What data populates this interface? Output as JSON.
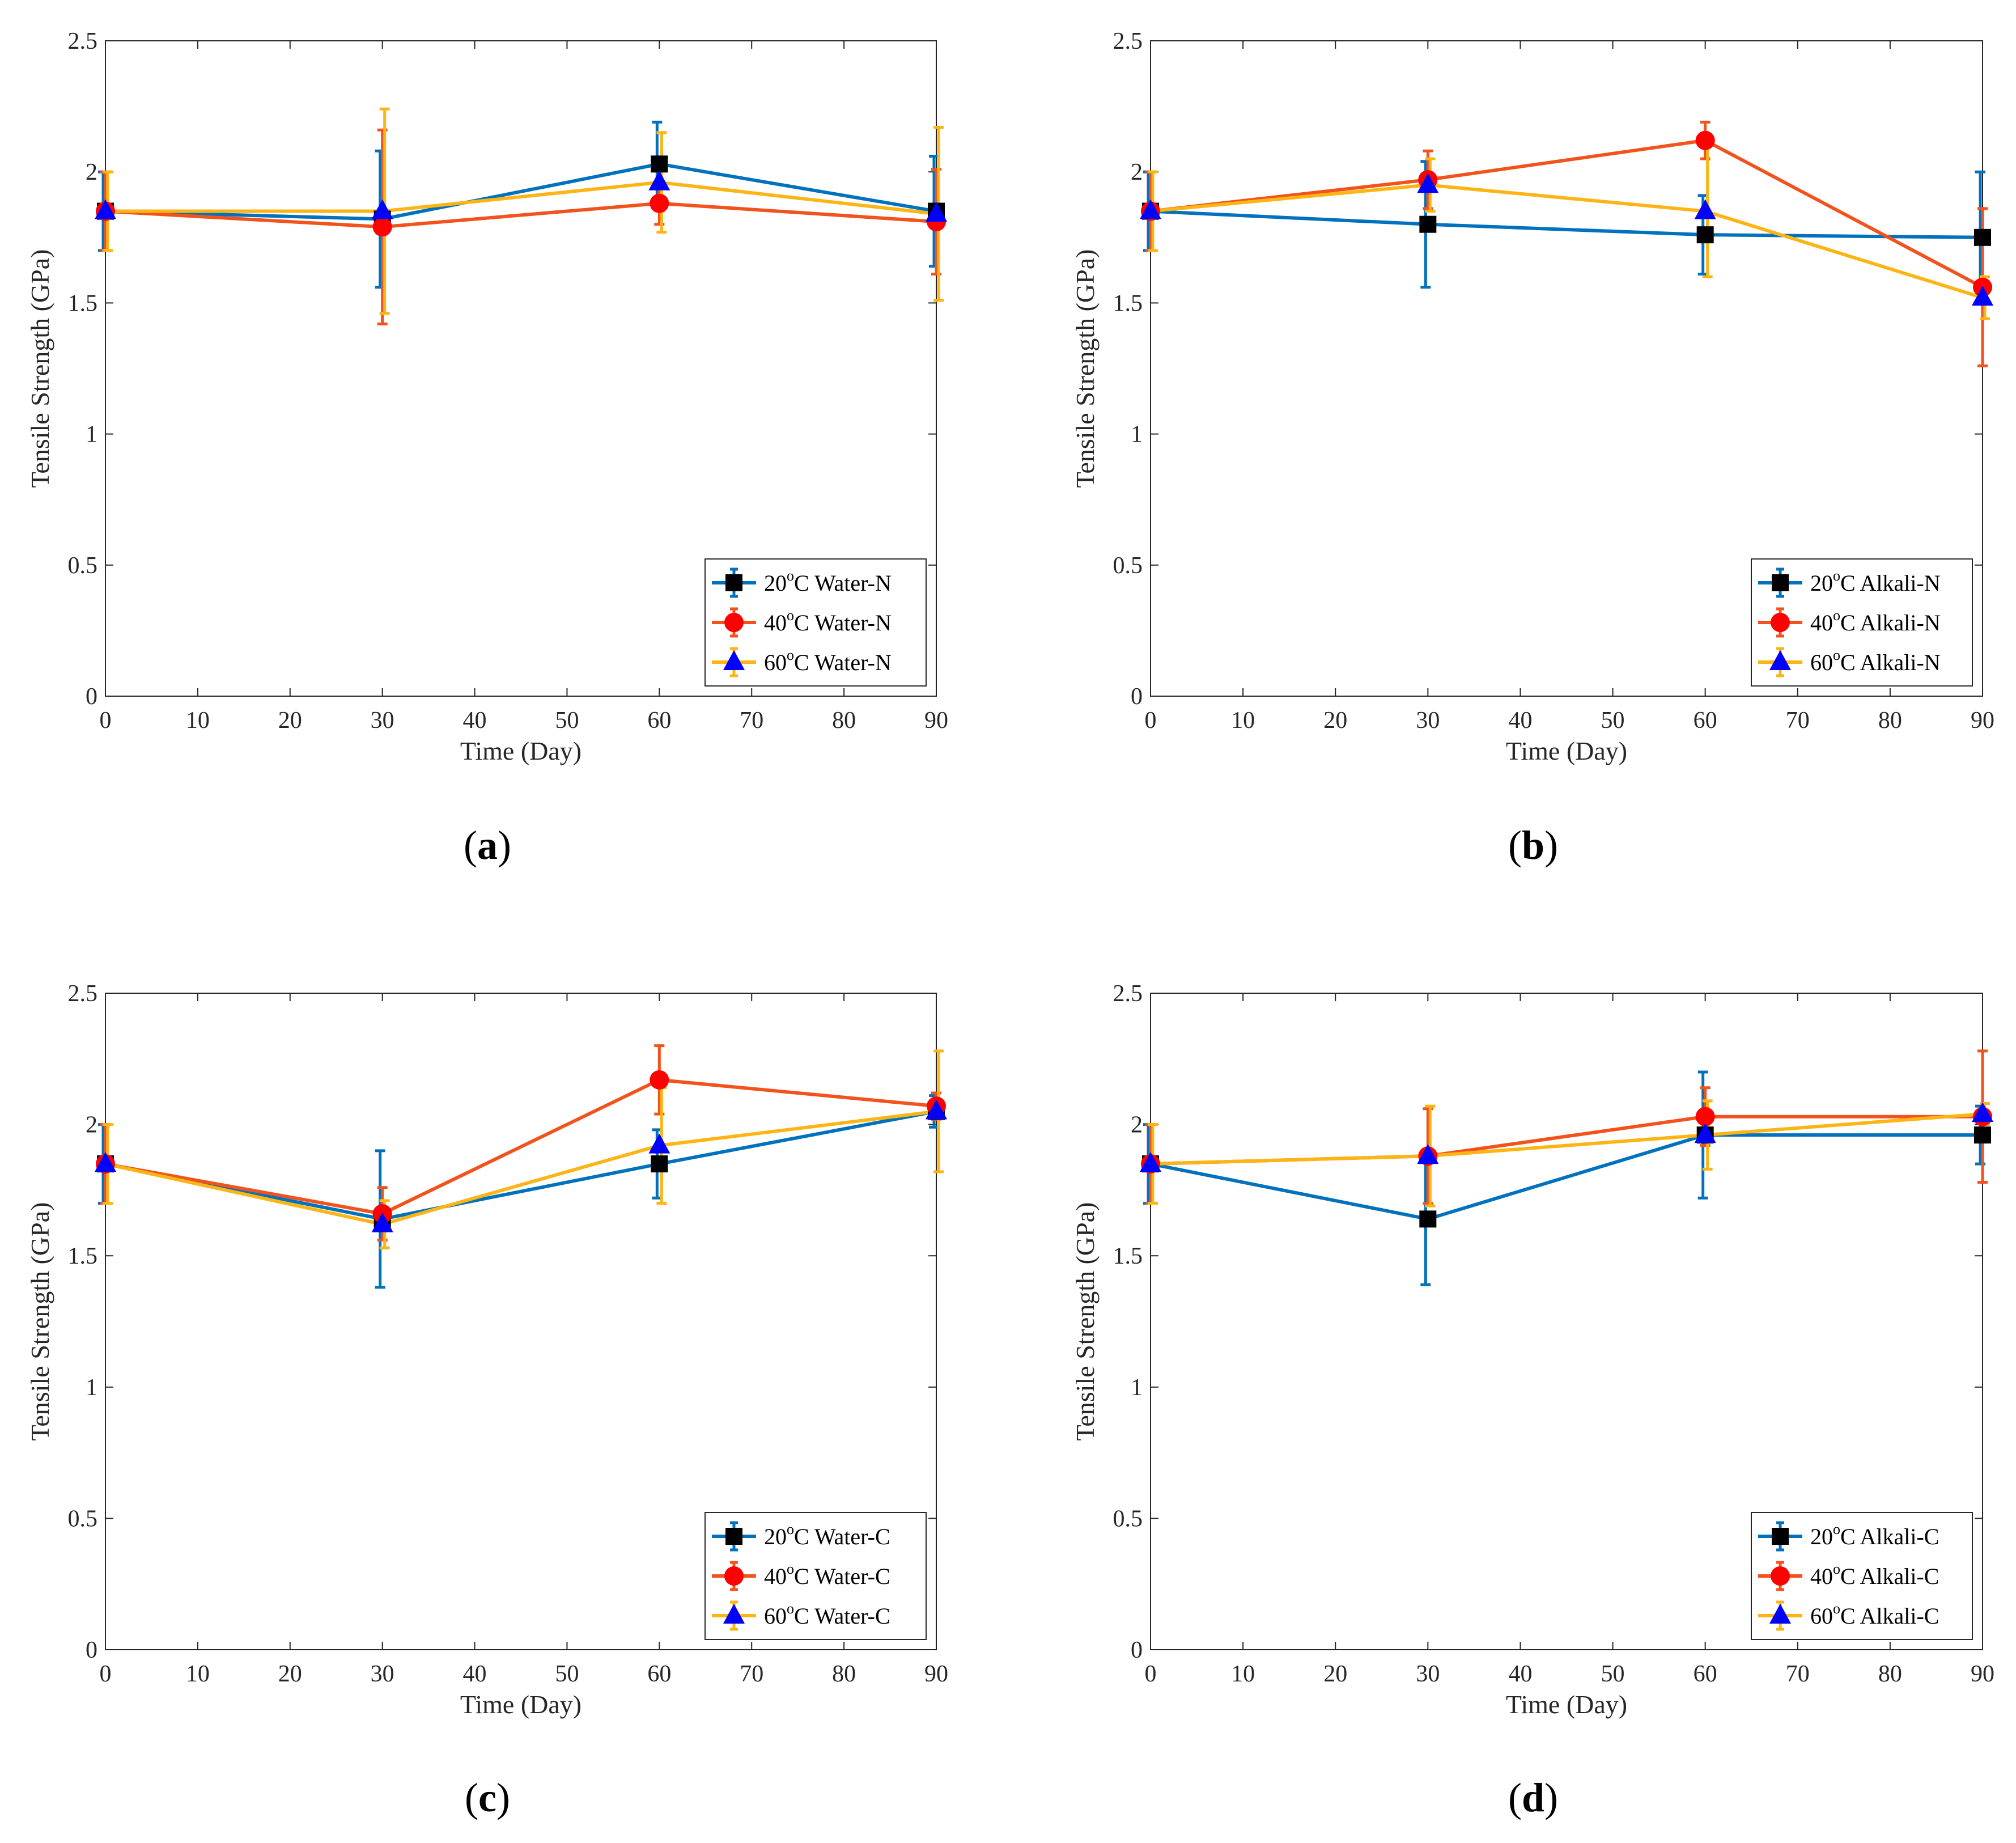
{
  "colors": {
    "blue": "#0072BD",
    "orange": "#F2521B",
    "yellow": "#FDB515",
    "marker_black": "#000000",
    "marker_red": "#FF0000",
    "marker_blue": "#0000FF",
    "axis": "#262626"
  },
  "chart_data": [
    {
      "id": "a",
      "type": "line",
      "panel_label": "a",
      "xlabel": "Time (Day)",
      "ylabel": "Tensile Strength (GPa)",
      "xlim": [
        0,
        90
      ],
      "ylim": [
        0,
        2.5
      ],
      "xticks": [
        "0",
        "10",
        "20",
        "30",
        "40",
        "50",
        "60",
        "70",
        "80",
        "90"
      ],
      "yticks": [
        "0",
        "0.5",
        "1",
        "1.5",
        "2",
        "2.5"
      ],
      "x": [
        0,
        30,
        60,
        90
      ],
      "legend_position": "bottom-right",
      "series": [
        {
          "name": "20°C Water-N",
          "legend_prefix": "20",
          "legend_sup": "o",
          "legend_suffix": "C Water-N",
          "values": [
            1.85,
            1.82,
            2.03,
            1.85
          ],
          "errors": [
            0.15,
            0.26,
            0.16,
            0.21
          ],
          "marker": "square",
          "line_color": "blue"
        },
        {
          "name": "40°C Water-N",
          "legend_prefix": "40",
          "legend_sup": "o",
          "legend_suffix": "C Water-N",
          "values": [
            1.85,
            1.79,
            1.88,
            1.81
          ],
          "errors": [
            0.15,
            0.37,
            0.08,
            0.2
          ],
          "marker": "circle",
          "line_color": "orange"
        },
        {
          "name": "60°C Water-N",
          "legend_prefix": "60",
          "legend_sup": "o",
          "legend_suffix": "C Water-N",
          "values": [
            1.85,
            1.85,
            1.96,
            1.84
          ],
          "errors": [
            0.15,
            0.39,
            0.19,
            0.33
          ],
          "marker": "triangle",
          "line_color": "yellow"
        }
      ]
    },
    {
      "id": "b",
      "type": "line",
      "panel_label": "b",
      "xlabel": "Time (Day)",
      "ylabel": "Tensile Strength (GPa)",
      "xlim": [
        0,
        90
      ],
      "ylim": [
        0,
        2.5
      ],
      "xticks": [
        "0",
        "10",
        "20",
        "30",
        "40",
        "50",
        "60",
        "70",
        "80",
        "90"
      ],
      "yticks": [
        "0",
        "0.5",
        "1",
        "1.5",
        "2",
        "2.5"
      ],
      "x": [
        0,
        30,
        60,
        90
      ],
      "legend_position": "bottom-right",
      "series": [
        {
          "name": "20°C Alkali-N",
          "legend_prefix": "20",
          "legend_sup": "o",
          "legend_suffix": "C Alkali-N",
          "values": [
            1.85,
            1.8,
            1.76,
            1.75
          ],
          "errors": [
            0.15,
            0.24,
            0.15,
            0.25
          ],
          "marker": "square",
          "line_color": "blue"
        },
        {
          "name": "40°C Alkali-N",
          "legend_prefix": "40",
          "legend_sup": "o",
          "legend_suffix": "C Alkali-N",
          "values": [
            1.85,
            1.97,
            2.12,
            1.56
          ],
          "errors": [
            0.15,
            0.11,
            0.07,
            0.3
          ],
          "marker": "circle",
          "line_color": "orange"
        },
        {
          "name": "60°C Alkali-N",
          "legend_prefix": "60",
          "legend_sup": "o",
          "legend_suffix": "C Alkali-N",
          "values": [
            1.85,
            1.95,
            1.85,
            1.52
          ],
          "errors": [
            0.15,
            0.1,
            0.25,
            0.08
          ],
          "marker": "triangle",
          "line_color": "yellow"
        }
      ]
    },
    {
      "id": "c",
      "type": "line",
      "panel_label": "c",
      "xlabel": "Time (Day)",
      "ylabel": "Tensile Strength (GPa)",
      "xlim": [
        0,
        90
      ],
      "ylim": [
        0,
        2.5
      ],
      "xticks": [
        "0",
        "10",
        "20",
        "30",
        "40",
        "50",
        "60",
        "70",
        "80",
        "90"
      ],
      "yticks": [
        "0",
        "0.5",
        "1",
        "1.5",
        "2",
        "2.5"
      ],
      "x": [
        0,
        30,
        60,
        90
      ],
      "legend_position": "bottom-right",
      "series": [
        {
          "name": "20°C Water-C",
          "legend_prefix": "20",
          "legend_sup": "o",
          "legend_suffix": "C Water-C",
          "values": [
            1.85,
            1.64,
            1.85,
            2.05
          ],
          "errors": [
            0.15,
            0.26,
            0.13,
            0.06
          ],
          "marker": "square",
          "line_color": "blue"
        },
        {
          "name": "40°C Water-C",
          "legend_prefix": "40",
          "legend_sup": "o",
          "legend_suffix": "C Water-C",
          "values": [
            1.85,
            1.66,
            2.17,
            2.07
          ],
          "errors": [
            0.15,
            0.1,
            0.13,
            0.05
          ],
          "marker": "circle",
          "line_color": "orange"
        },
        {
          "name": "60°C Water-C",
          "legend_prefix": "60",
          "legend_sup": "o",
          "legend_suffix": "C Water-C",
          "values": [
            1.85,
            1.62,
            1.92,
            2.05
          ],
          "errors": [
            0.15,
            0.09,
            0.22,
            0.23
          ],
          "marker": "triangle",
          "line_color": "yellow"
        }
      ]
    },
    {
      "id": "d",
      "type": "line",
      "panel_label": "d",
      "xlabel": "Time (Day)",
      "ylabel": "Tensile Strength (GPa)",
      "xlim": [
        0,
        90
      ],
      "ylim": [
        0,
        2.5
      ],
      "xticks": [
        "0",
        "10",
        "20",
        "30",
        "40",
        "50",
        "60",
        "70",
        "80",
        "90"
      ],
      "yticks": [
        "0",
        "0.5",
        "1",
        "1.5",
        "2",
        "2.5"
      ],
      "x": [
        0,
        30,
        60,
        90
      ],
      "legend_position": "bottom-right",
      "series": [
        {
          "name": "20°C Alkali-C",
          "legend_prefix": "20",
          "legend_sup": "o",
          "legend_suffix": "C Alkali-C",
          "values": [
            1.85,
            1.64,
            1.96,
            1.96
          ],
          "errors": [
            0.15,
            0.25,
            0.24,
            0.11
          ],
          "marker": "square",
          "line_color": "blue"
        },
        {
          "name": "40°C Alkali-C",
          "legend_prefix": "40",
          "legend_sup": "o",
          "legend_suffix": "C Alkali-C",
          "values": [
            1.85,
            1.88,
            2.03,
            2.03
          ],
          "errors": [
            0.15,
            0.18,
            0.11,
            0.25
          ],
          "marker": "circle",
          "line_color": "orange"
        },
        {
          "name": "60°C Alkali-C",
          "legend_prefix": "60",
          "legend_sup": "o",
          "legend_suffix": "C Alkali-C",
          "values": [
            1.85,
            1.88,
            1.96,
            2.04
          ],
          "errors": [
            0.15,
            0.19,
            0.13,
            0.04
          ],
          "marker": "triangle",
          "line_color": "yellow"
        }
      ]
    }
  ]
}
